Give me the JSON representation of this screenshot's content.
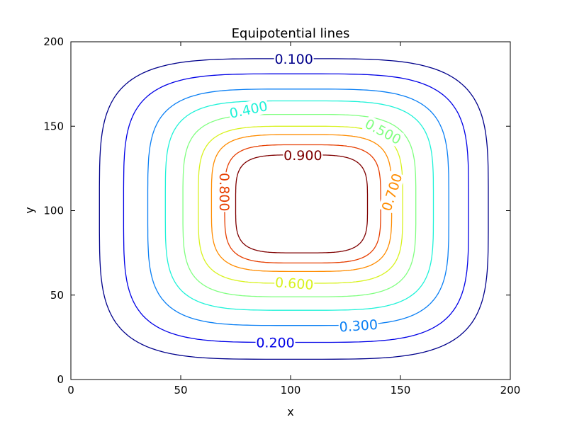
{
  "chart_data": {
    "type": "contour",
    "title": "Equipotential lines",
    "xlabel": "x",
    "ylabel": "y",
    "xlim": [
      0,
      200
    ],
    "ylim": [
      0,
      200
    ],
    "xticks": [
      0,
      50,
      100,
      150,
      200
    ],
    "yticks": [
      0,
      50,
      100,
      150,
      200
    ],
    "grid": false,
    "colormap": "jet",
    "levels": [
      {
        "value": 0.1,
        "label": "0.100",
        "color": "#00008b",
        "x_range": [
          13,
          190
        ],
        "y_range": [
          12,
          190
        ]
      },
      {
        "value": 0.2,
        "label": "0.200",
        "color": "#0000e6",
        "x_range": [
          24,
          181
        ],
        "y_range": [
          22,
          181
        ]
      },
      {
        "value": 0.3,
        "label": "0.300",
        "color": "#0a7ff4",
        "x_range": [
          35,
          172
        ],
        "y_range": [
          32,
          172
        ]
      },
      {
        "value": 0.4,
        "label": "0.400",
        "color": "#1ef2d8",
        "x_range": [
          43,
          165
        ],
        "y_range": [
          41,
          165
        ]
      },
      {
        "value": 0.5,
        "label": "0.500",
        "color": "#80ff80",
        "x_range": [
          51,
          157
        ],
        "y_range": [
          49,
          157
        ]
      },
      {
        "value": 0.6,
        "label": "0.600",
        "color": "#d8f21e",
        "x_range": [
          58,
          151
        ],
        "y_range": [
          57,
          150
        ]
      },
      {
        "value": 0.7,
        "label": "0.700",
        "color": "#ff8c00",
        "x_range": [
          64,
          146
        ],
        "y_range": [
          64,
          145
        ]
      },
      {
        "value": 0.8,
        "label": "0.800",
        "color": "#e63e00",
        "x_range": [
          70,
          141
        ],
        "y_range": [
          69,
          139
        ]
      },
      {
        "value": 0.9,
        "label": "0.900",
        "color": "#7f0000",
        "x_range": [
          75,
          135
        ],
        "y_range": [
          75,
          133
        ]
      }
    ]
  }
}
